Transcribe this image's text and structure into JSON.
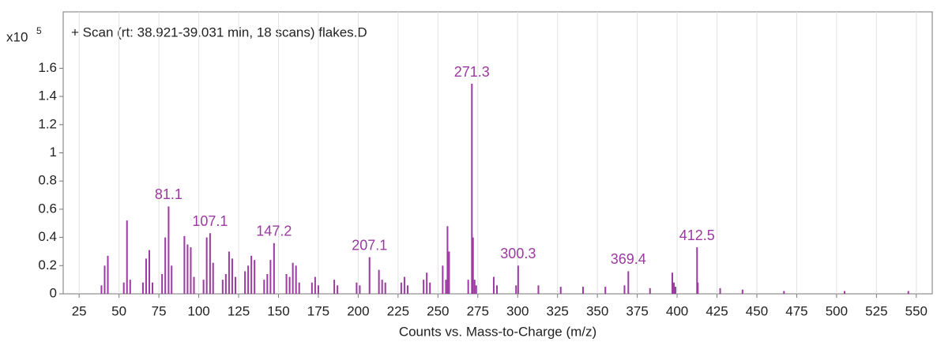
{
  "chart_data": {
    "type": "spectrum",
    "title": "+ Scan (rt: 38.921-39.031 min, 18 scans) flakes.D",
    "y_multiplier": "x10",
    "y_exponent": "5",
    "x_label": "Counts vs. Mass-to-Charge (m/z)",
    "xlim": [
      15,
      560
    ],
    "ylim": [
      0,
      2
    ],
    "xticks": [
      25,
      50,
      75,
      100,
      125,
      150,
      175,
      200,
      225,
      250,
      275,
      300,
      325,
      350,
      375,
      400,
      425,
      450,
      475,
      500,
      525,
      550
    ],
    "yticks": [
      0,
      0.2,
      0.4,
      0.6,
      0.8,
      1,
      1.2,
      1.4,
      1.6
    ],
    "grid": true,
    "color": "#9b3aa0",
    "series": [
      {
        "show_labels": true,
        "x": [
          81.1,
          107.1,
          147.2,
          207.1,
          271.3,
          300.3,
          369.4,
          412.5
        ],
        "values": [
          0.62,
          0.43,
          0.36,
          0.26,
          1.49,
          0.2,
          0.16,
          0.33
        ]
      },
      {
        "show_labels": false,
        "x": [
          39,
          41,
          43,
          53,
          55,
          57,
          65,
          67,
          69,
          71,
          77,
          79,
          83,
          91,
          93,
          95,
          97,
          103,
          105,
          109,
          115,
          117,
          119,
          121,
          123,
          129,
          131,
          133,
          135,
          141,
          143,
          145,
          155,
          157,
          159,
          161,
          163,
          171,
          173,
          175,
          185,
          187,
          199,
          201,
          213,
          215,
          217,
          227,
          229,
          231,
          241,
          243,
          245,
          253,
          255,
          256,
          257,
          269,
          272,
          273,
          274,
          285,
          287,
          299,
          313,
          327,
          341,
          355,
          367,
          383,
          397,
          398,
          399,
          413,
          427,
          441,
          467,
          505,
          545
        ],
        "values": [
          0.06,
          0.2,
          0.27,
          0.08,
          0.52,
          0.1,
          0.08,
          0.25,
          0.31,
          0.08,
          0.14,
          0.4,
          0.2,
          0.41,
          0.35,
          0.33,
          0.12,
          0.1,
          0.4,
          0.22,
          0.1,
          0.14,
          0.3,
          0.25,
          0.12,
          0.16,
          0.2,
          0.27,
          0.24,
          0.1,
          0.14,
          0.24,
          0.14,
          0.12,
          0.22,
          0.2,
          0.08,
          0.08,
          0.12,
          0.06,
          0.1,
          0.06,
          0.08,
          0.06,
          0.17,
          0.1,
          0.08,
          0.08,
          0.12,
          0.06,
          0.1,
          0.15,
          0.08,
          0.2,
          0.1,
          0.48,
          0.3,
          0.1,
          0.4,
          0.1,
          0.06,
          0.12,
          0.06,
          0.06,
          0.06,
          0.05,
          0.05,
          0.05,
          0.06,
          0.04,
          0.15,
          0.08,
          0.05,
          0.08,
          0.04,
          0.03,
          0.02,
          0.02,
          0.02
        ]
      }
    ]
  }
}
